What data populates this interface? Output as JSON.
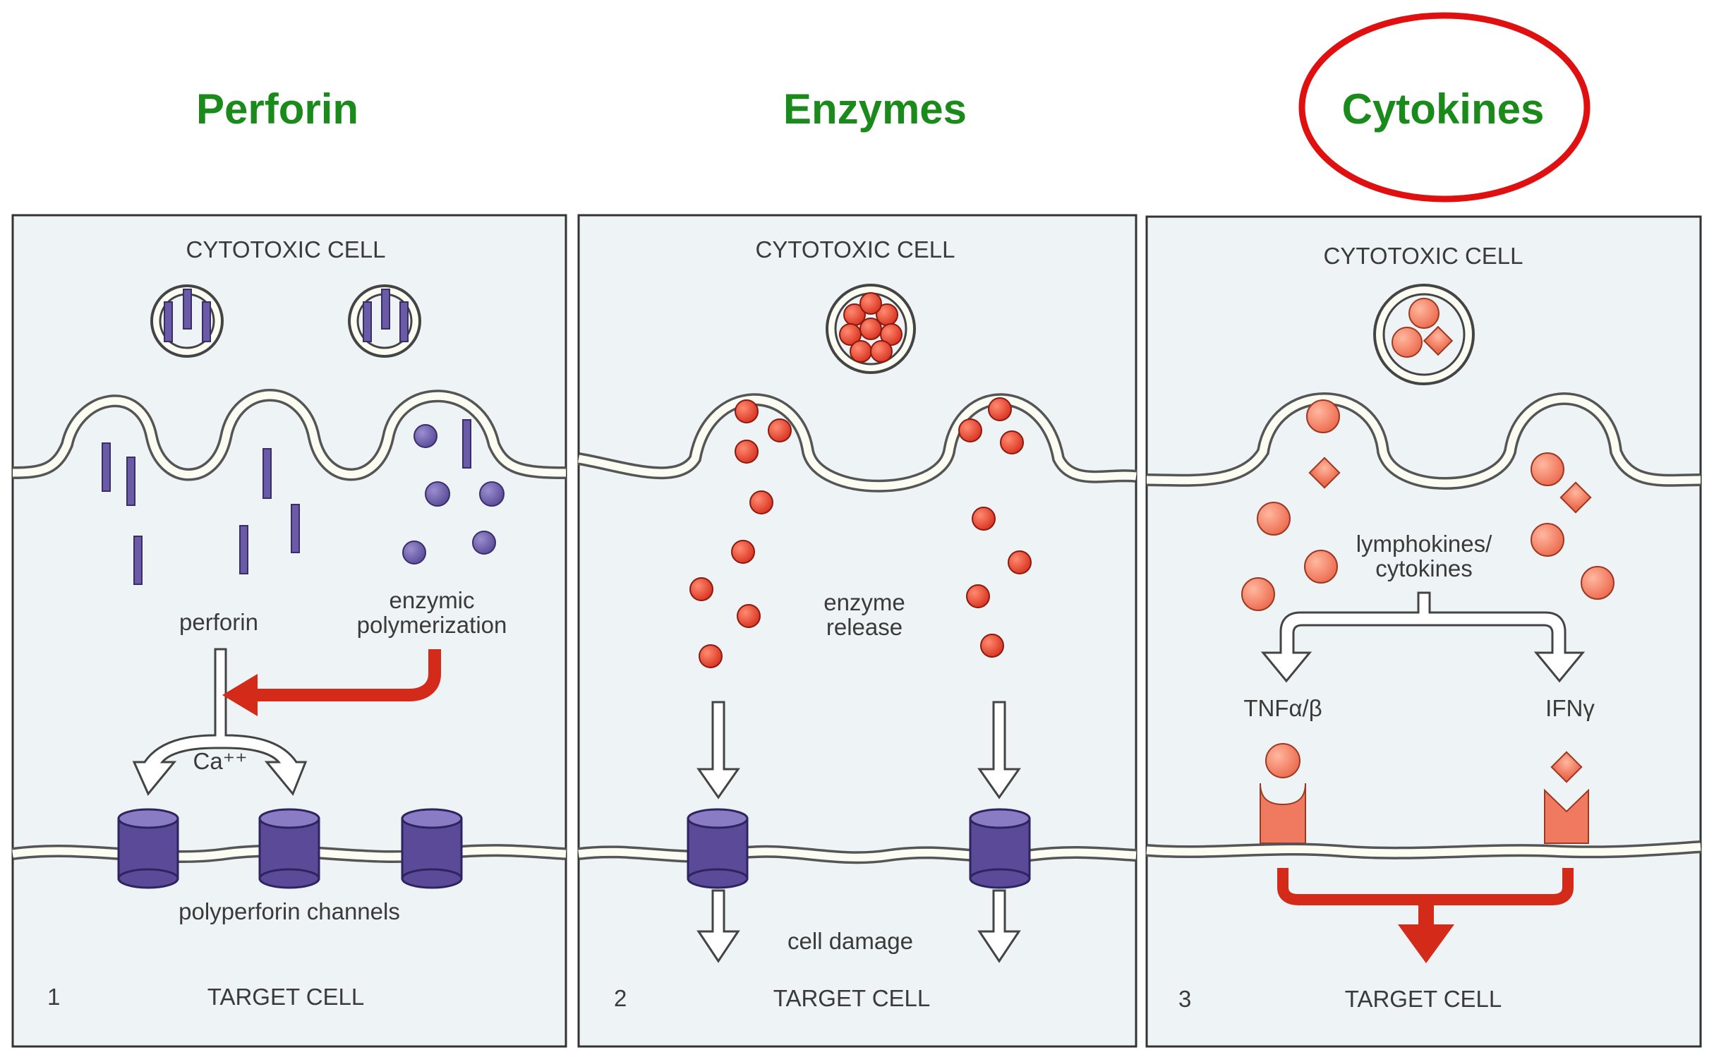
{
  "headings": {
    "perforin": "Perforin",
    "enzymes": "Enzymes",
    "cytokines": "Cytokines"
  },
  "panel1": {
    "number": "1",
    "cytotoxic_cell": "CYTOTOXIC CELL",
    "perforin_label": "perforin",
    "enzymic_line1": "enzymic",
    "enzymic_line2": "polymerization",
    "ca_label": "Ca⁺⁺",
    "channels_label": "polyperforin channels",
    "target_cell": "TARGET CELL"
  },
  "panel2": {
    "number": "2",
    "cytotoxic_cell": "CYTOTOXIC CELL",
    "release_line1": "enzyme",
    "release_line2": "release",
    "damage_label": "cell damage",
    "target_cell": "TARGET CELL"
  },
  "panel3": {
    "number": "3",
    "cytotoxic_cell": "CYTOTOXIC CELL",
    "lympho_line1": "lymphokines/",
    "lympho_line2": "cytokines",
    "tnf_label": "TNFα/β",
    "ifn_label": "IFNγ",
    "target_cell": "TARGET CELL"
  },
  "colors": {
    "heading_green": "#1a8a1a",
    "highlight_red": "#e01010",
    "purple": "#6b5aa6",
    "enzyme_red": "#e2402e",
    "cytokine_salmon": "#f07a60",
    "arrow_red": "#d42a1a"
  }
}
